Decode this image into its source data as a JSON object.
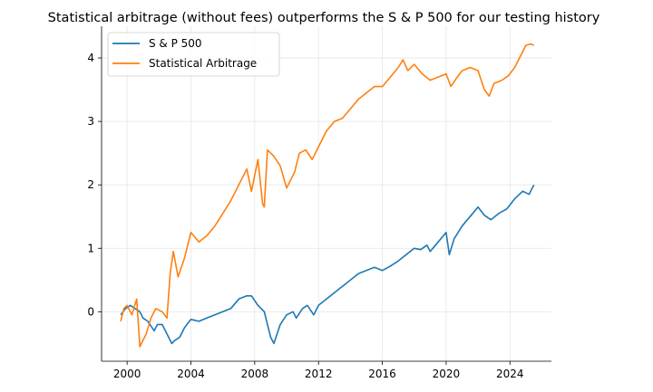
{
  "chart_data": {
    "type": "line",
    "title": "Statistical arbitrage (without fees) outperforms the S & P 500 for our testing history",
    "xlabel": "",
    "ylabel": "",
    "xlim": [
      1998.4,
      2026.6
    ],
    "ylim": [
      -0.78,
      4.5
    ],
    "x_ticks": [
      2000,
      2004,
      2008,
      2012,
      2016,
      2020,
      2024
    ],
    "y_ticks": [
      0,
      1,
      2,
      3,
      4
    ],
    "grid": true,
    "legend_position": "upper-left",
    "series": [
      {
        "name": "S & P 500",
        "color": "#1f77b4",
        "points": [
          [
            1999.6,
            -0.05
          ],
          [
            1999.9,
            0.05
          ],
          [
            2000.2,
            0.1
          ],
          [
            2000.5,
            0.05
          ],
          [
            2000.8,
            0.0
          ],
          [
            2001.0,
            -0.1
          ],
          [
            2001.3,
            -0.15
          ],
          [
            2001.7,
            -0.3
          ],
          [
            2001.9,
            -0.2
          ],
          [
            2002.2,
            -0.2
          ],
          [
            2002.5,
            -0.35
          ],
          [
            2002.8,
            -0.5
          ],
          [
            2003.0,
            -0.45
          ],
          [
            2003.3,
            -0.4
          ],
          [
            2003.6,
            -0.25
          ],
          [
            2004.0,
            -0.12
          ],
          [
            2004.5,
            -0.15
          ],
          [
            2005.0,
            -0.1
          ],
          [
            2005.5,
            -0.05
          ],
          [
            2006.0,
            0.0
          ],
          [
            2006.5,
            0.05
          ],
          [
            2007.0,
            0.2
          ],
          [
            2007.5,
            0.25
          ],
          [
            2007.8,
            0.25
          ],
          [
            2008.2,
            0.1
          ],
          [
            2008.6,
            0.0
          ],
          [
            2008.8,
            -0.2
          ],
          [
            2009.0,
            -0.4
          ],
          [
            2009.2,
            -0.5
          ],
          [
            2009.6,
            -0.2
          ],
          [
            2010.0,
            -0.05
          ],
          [
            2010.4,
            0.0
          ],
          [
            2010.6,
            -0.1
          ],
          [
            2011.0,
            0.05
          ],
          [
            2011.3,
            0.1
          ],
          [
            2011.7,
            -0.05
          ],
          [
            2012.0,
            0.1
          ],
          [
            2012.5,
            0.2
          ],
          [
            2013.0,
            0.3
          ],
          [
            2013.5,
            0.4
          ],
          [
            2014.0,
            0.5
          ],
          [
            2014.5,
            0.6
          ],
          [
            2015.0,
            0.65
          ],
          [
            2015.5,
            0.7
          ],
          [
            2016.0,
            0.65
          ],
          [
            2016.5,
            0.72
          ],
          [
            2017.0,
            0.8
          ],
          [
            2017.5,
            0.9
          ],
          [
            2018.0,
            1.0
          ],
          [
            2018.4,
            0.98
          ],
          [
            2018.8,
            1.05
          ],
          [
            2019.0,
            0.95
          ],
          [
            2019.5,
            1.1
          ],
          [
            2020.0,
            1.25
          ],
          [
            2020.2,
            0.9
          ],
          [
            2020.5,
            1.15
          ],
          [
            2021.0,
            1.35
          ],
          [
            2021.5,
            1.5
          ],
          [
            2022.0,
            1.65
          ],
          [
            2022.4,
            1.52
          ],
          [
            2022.8,
            1.45
          ],
          [
            2023.3,
            1.55
          ],
          [
            2023.8,
            1.62
          ],
          [
            2024.3,
            1.78
          ],
          [
            2024.8,
            1.9
          ],
          [
            2025.2,
            1.85
          ],
          [
            2025.4,
            1.95
          ],
          [
            2025.5,
            2.0
          ]
        ]
      },
      {
        "name": "Statistical Arbitrage",
        "color": "#ff7f0e",
        "points": [
          [
            1999.6,
            -0.15
          ],
          [
            1999.8,
            0.05
          ],
          [
            2000.0,
            0.1
          ],
          [
            2000.3,
            -0.05
          ],
          [
            2000.6,
            0.2
          ],
          [
            2000.8,
            -0.55
          ],
          [
            2001.2,
            -0.35
          ],
          [
            2001.5,
            -0.1
          ],
          [
            2001.8,
            0.05
          ],
          [
            2002.2,
            0.0
          ],
          [
            2002.5,
            -0.1
          ],
          [
            2002.7,
            0.6
          ],
          [
            2002.9,
            0.95
          ],
          [
            2003.2,
            0.55
          ],
          [
            2003.6,
            0.85
          ],
          [
            2004.0,
            1.25
          ],
          [
            2004.5,
            1.1
          ],
          [
            2005.0,
            1.2
          ],
          [
            2005.5,
            1.35
          ],
          [
            2006.0,
            1.55
          ],
          [
            2006.5,
            1.75
          ],
          [
            2007.0,
            2.0
          ],
          [
            2007.5,
            2.25
          ],
          [
            2007.8,
            1.9
          ],
          [
            2008.2,
            2.4
          ],
          [
            2008.5,
            1.7
          ],
          [
            2008.6,
            1.65
          ],
          [
            2008.8,
            2.55
          ],
          [
            2009.2,
            2.45
          ],
          [
            2009.6,
            2.3
          ],
          [
            2010.0,
            1.95
          ],
          [
            2010.5,
            2.2
          ],
          [
            2010.8,
            2.5
          ],
          [
            2011.2,
            2.55
          ],
          [
            2011.6,
            2.4
          ],
          [
            2012.0,
            2.6
          ],
          [
            2012.5,
            2.85
          ],
          [
            2013.0,
            3.0
          ],
          [
            2013.5,
            3.05
          ],
          [
            2014.0,
            3.2
          ],
          [
            2014.5,
            3.35
          ],
          [
            2015.0,
            3.45
          ],
          [
            2015.5,
            3.55
          ],
          [
            2016.0,
            3.55
          ],
          [
            2016.5,
            3.7
          ],
          [
            2017.0,
            3.85
          ],
          [
            2017.3,
            3.97
          ],
          [
            2017.6,
            3.8
          ],
          [
            2018.0,
            3.9
          ],
          [
            2018.5,
            3.75
          ],
          [
            2019.0,
            3.65
          ],
          [
            2019.5,
            3.7
          ],
          [
            2020.0,
            3.75
          ],
          [
            2020.3,
            3.55
          ],
          [
            2020.7,
            3.7
          ],
          [
            2021.0,
            3.8
          ],
          [
            2021.5,
            3.85
          ],
          [
            2022.0,
            3.8
          ],
          [
            2022.4,
            3.5
          ],
          [
            2022.7,
            3.4
          ],
          [
            2023.0,
            3.6
          ],
          [
            2023.5,
            3.65
          ],
          [
            2023.9,
            3.72
          ],
          [
            2024.3,
            3.85
          ],
          [
            2024.7,
            4.05
          ],
          [
            2025.0,
            4.2
          ],
          [
            2025.3,
            4.22
          ],
          [
            2025.5,
            4.2
          ]
        ]
      }
    ]
  }
}
